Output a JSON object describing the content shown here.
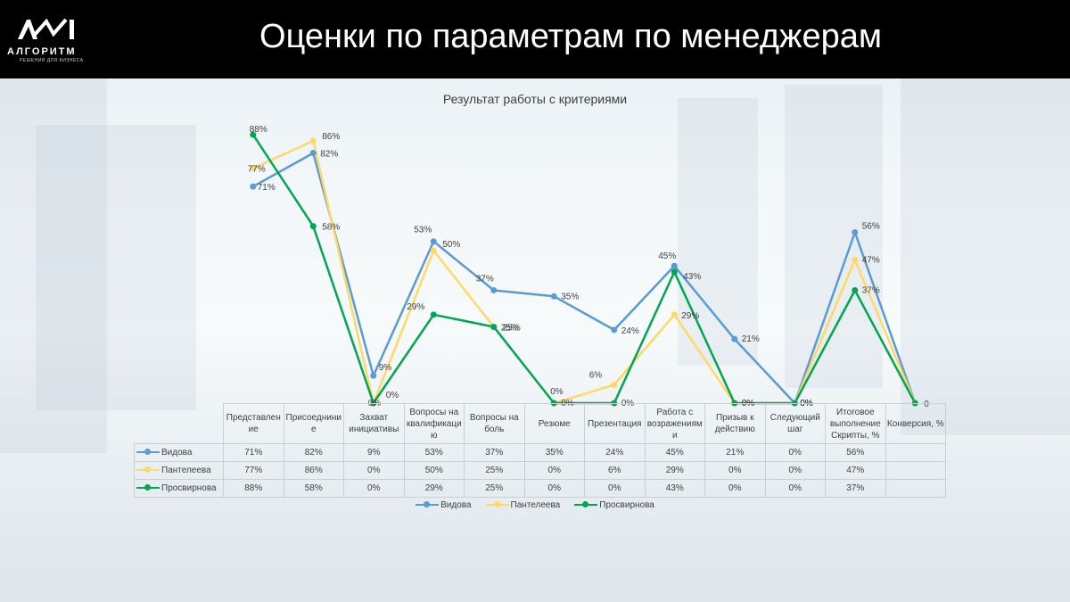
{
  "header": {
    "title": "Оценки по параметрам по менеджерам",
    "logo_text": "АЛГОРИТМ",
    "logo_sub": "РЕШЕНИЯ ДЛЯ БИЗНЕСА"
  },
  "colors": {
    "Видова": "#5b9bd5",
    "Пантелеева": "#ffd966",
    "Просвирнова": "#00a651"
  },
  "chart_data": {
    "type": "line",
    "title": "Результат работы с критериями",
    "categories": [
      "Представление",
      "Присоединние",
      "Захват инициативы",
      "Вопросы на квалификацию",
      "Вопросы на боль",
      "Резюме",
      "Презентация",
      "Работа с возражениями",
      "Призыв к действию",
      "Следующий шаг",
      "Итоговое выполнение Скрипты, %",
      "Конверсия, %"
    ],
    "category_labels": [
      "Представлен ие",
      "Присоеднини е",
      "Захват инициативы",
      "Вопросы на квалификаци ю",
      "Вопросы на боль",
      "Резюме",
      "Презентация",
      "Работа с возражениям и",
      "Призыв к действию",
      "Следующий шаг",
      "Итоговое выполнение Скрипты, %",
      "Конверсия, %"
    ],
    "ylim": [
      0,
      100
    ],
    "legend": "bottom",
    "series": [
      {
        "name": "Видова",
        "values": [
          71,
          82,
          9,
          53,
          37,
          35,
          24,
          45,
          21,
          0,
          56,
          0
        ],
        "labels": [
          "71%",
          "82%",
          "9%",
          "53%",
          "37%",
          "35%",
          "24%",
          "45%",
          "21%",
          "0%",
          "56%",
          ""
        ]
      },
      {
        "name": "Пантелеева",
        "values": [
          77,
          86,
          0,
          50,
          25,
          0,
          6,
          29,
          0,
          0,
          47,
          0
        ],
        "labels": [
          "77%",
          "86%",
          "0%",
          "50%",
          "25%",
          "0%",
          "6%",
          "29%",
          "0%",
          "0%",
          "47%",
          ""
        ]
      },
      {
        "name": "Просвирнова",
        "values": [
          88,
          58,
          0,
          29,
          25,
          0,
          0,
          43,
          0,
          0,
          37,
          0
        ],
        "labels": [
          "88%",
          "58%",
          "0%",
          "29%",
          "25%",
          "0%",
          "0%",
          "43%",
          "0%",
          "0%",
          "37%",
          ""
        ]
      }
    ],
    "end_point_label": "0"
  }
}
